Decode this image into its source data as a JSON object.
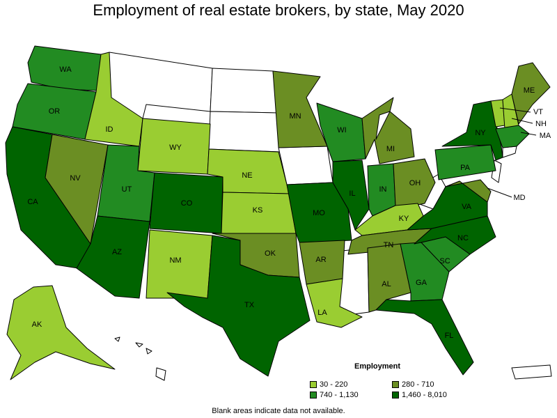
{
  "title": "Employment of real estate brokers, by state, May 2020",
  "note": "Blank areas indicate data not available.",
  "legend": {
    "title": "Employment",
    "items": [
      {
        "label": "30 - 220",
        "color": "#9acd32"
      },
      {
        "label": "280 - 710",
        "color": "#6b8e23"
      },
      {
        "label": "740 - 1,130",
        "color": "#228b22"
      },
      {
        "label": "1,460 - 8,010",
        "color": "#006400"
      }
    ]
  },
  "states": {
    "WA": "WA",
    "OR": "OR",
    "CA": "CA",
    "ID": "ID",
    "NV": "NV",
    "UT": "UT",
    "AZ": "AZ",
    "WY": "WY",
    "CO": "CO",
    "NM": "NM",
    "NE": "NE",
    "KS": "KS",
    "OK": "OK",
    "TX": "TX",
    "MN": "MN",
    "MO": "MO",
    "AR": "AR",
    "LA": "LA",
    "WI": "WI",
    "IL": "IL",
    "MI": "MI",
    "IN": "IN",
    "OH": "OH",
    "KY": "KY",
    "TN": "TN",
    "AL": "AL",
    "GA": "GA",
    "FL": "FL",
    "SC": "SC",
    "NC": "NC",
    "VA": "VA",
    "PA": "PA",
    "NY": "NY",
    "ME": "ME",
    "VT": "VT",
    "NH": "NH",
    "MA": "MA",
    "MD": "MD",
    "AK": "AK"
  }
}
